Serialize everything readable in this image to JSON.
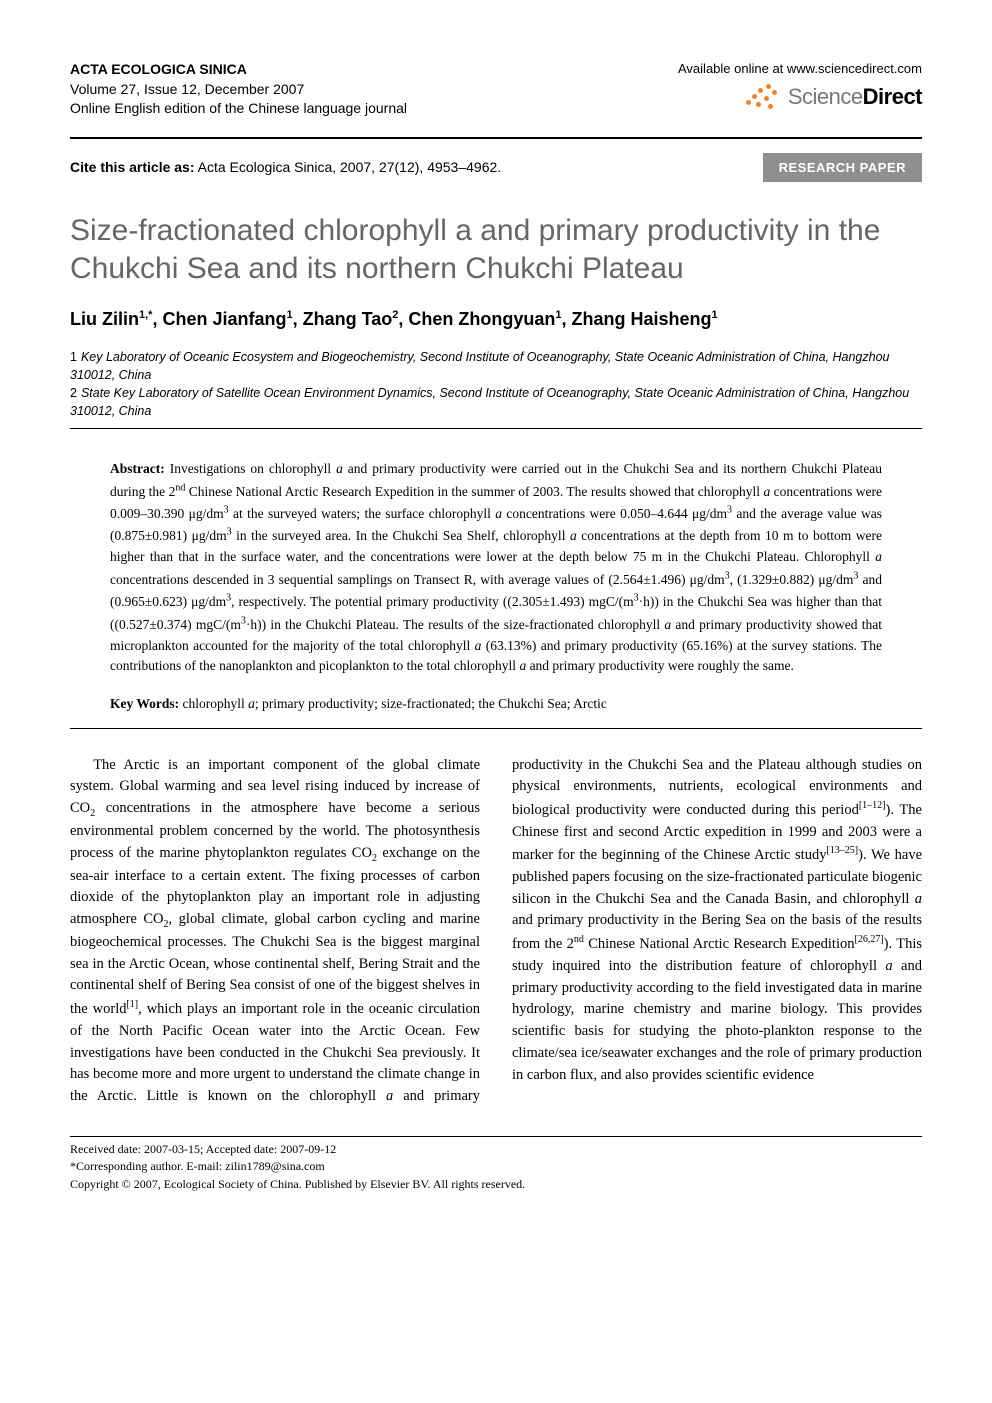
{
  "header": {
    "journal_title": "ACTA ECOLOGICA SINICA",
    "volume_issue": "Volume 27, Issue 12, December 2007",
    "edition_note": "Online English edition of the Chinese language journal",
    "available_online": "Available online at www.sciencedirect.com",
    "sd_grey": "Science",
    "sd_black": "Direct"
  },
  "cite": {
    "label": "Cite this article as:",
    "text": " Acta Ecologica Sinica, 2007, 27(12), 4953–4962.",
    "badge": "RESEARCH PAPER"
  },
  "article": {
    "title": "Size-fractionated chlorophyll a and primary productivity in the Chukchi Sea and its northern Chukchi Plateau",
    "authors_html": "Liu Zilin<sup>1,*</sup>, Chen Jianfang<sup>1</sup>, Zhang Tao<sup>2</sup>, Chen Zhongyuan<sup>1</sup>, Zhang Haisheng<sup>1</sup>",
    "affiliations": [
      "Key Laboratory of Oceanic Ecosystem and Biogeochemistry, Second Institute of Oceanography, State Oceanic Administration of China, Hangzhou 310012, China",
      "State Key Laboratory of Satellite Ocean Environment Dynamics, Second Institute of Oceanography, State Oceanic Administration of China, Hangzhou 310012, China"
    ]
  },
  "abstract": {
    "label": "Abstract:",
    "text_html": "Investigations on chlorophyll <i>a</i> and primary productivity were carried out in the Chukchi Sea and its northern Chukchi Plateau during the 2<sup>nd</sup> Chinese National Arctic Research Expedition in the summer of 2003. The results showed that chlorophyll <i>a</i> concentrations were 0.009–30.390 μg/dm<sup>3</sup> at the surveyed waters; the surface chlorophyll <i>a</i> concentrations were 0.050–4.644 μg/dm<sup>3</sup> and the average value was (0.875±0.981) μg/dm<sup>3</sup> in the surveyed area. In the Chukchi Sea Shelf, chlorophyll <i>a</i> concentrations at the depth from 10 m to bottom were higher than that in the surface water, and the concentrations were lower at the depth below 75 m in the Chukchi Plateau. Chlorophyll <i>a</i> concentrations descended in 3 sequential samplings on Transect R, with average values of (2.564±1.496) μg/dm<sup>3</sup>, (1.329±0.882) μg/dm<sup>3</sup> and (0.965±0.623) μg/dm<sup>3</sup>, respectively. The potential primary productivity ((2.305±1.493) mgC/(m<sup>3</sup>·h)) in the Chukchi Sea was higher than that ((0.527±0.374) mgC/(m<sup>3</sup>·h)) in the Chukchi Plateau. The results of the size-fractionated chlorophyll <i>a</i> and primary productivity showed that microplankton accounted for the majority of the total chlorophyll <i>a</i> (63.13%) and primary productivity (65.16%) at the survey stations. The contributions of the nanoplankton and picoplankton to the total chlorophyll <i>a</i> and primary productivity were roughly the same."
  },
  "keywords": {
    "label": "Key Words:",
    "text_html": "chlorophyll <i>a</i>; primary productivity; size-fractionated; the Chukchi Sea; Arctic"
  },
  "body": {
    "p1_html": "The Arctic is an important component of the global climate system. Global warming and sea level rising induced by increase of CO<sub>2</sub> concentrations in the atmosphere have become a serious environmental problem concerned by the world. The photosynthesis process of the marine phytoplankton regulates CO<sub>2</sub> exchange on the sea-air interface to a certain extent. The fixing processes of carbon dioxide of the phytoplankton play an important role in adjusting atmosphere CO<sub>2</sub>, global climate, global carbon cycling and marine biogeochemical processes. The Chukchi Sea is the biggest marginal sea in the Arctic Ocean, whose continental shelf, Bering Strait and the continental shelf of Bering Sea consist of one of the biggest shelves in the world<sup>[1]</sup>, which plays an important role in the oceanic circulation of the North Pacific Ocean water into the Arctic Ocean. Few investigations have been conducted in the Chukchi Sea previously. It has become more and more urgent to understand the climate change in the Arctic. Little is known on the chlorophyll <i>a</i> and primary productivity in the Chukchi Sea and the Plateau although studies on physical environments, nutrients, ecological environments and biological productivity were conducted during this period<sup>[1–12]</sup>). The Chinese first and second Arctic expedition in 1999 and 2003 were a marker for the beginning of the Chinese Arctic study<sup>[13–25]</sup>). We have published papers focusing on the size-fractionated particulate biogenic silicon in the Chukchi Sea and the Canada Basin, and chlorophyll <i>a</i> and primary productivity in the Bering Sea on the basis of the results from the 2<sup>nd</sup> Chinese National Arctic Research Expedition<sup>[26,27]</sup>). This study inquired into the distribution feature of chlorophyll <i>a</i> and primary productivity according to the field investigated data in marine hydrology, marine chemistry and marine biology. This provides scientific basis for studying the photo-plankton response to the climate/sea ice/seawater exchanges and the role of primary production in carbon flux, and also provides scientific evidence"
  },
  "footer": {
    "received": "Received date: 2007-03-15; Accepted date: 2007-09-12",
    "corresponding": "*Corresponding author. E-mail: zilin1789@sina.com",
    "copyright": "Copyright © 2007, Ecological Society of China. Published by Elsevier BV. All rights reserved."
  },
  "colors": {
    "title_grey": "#666666",
    "badge_bg": "#8f8f8f",
    "sd_orange": "#f58220"
  }
}
